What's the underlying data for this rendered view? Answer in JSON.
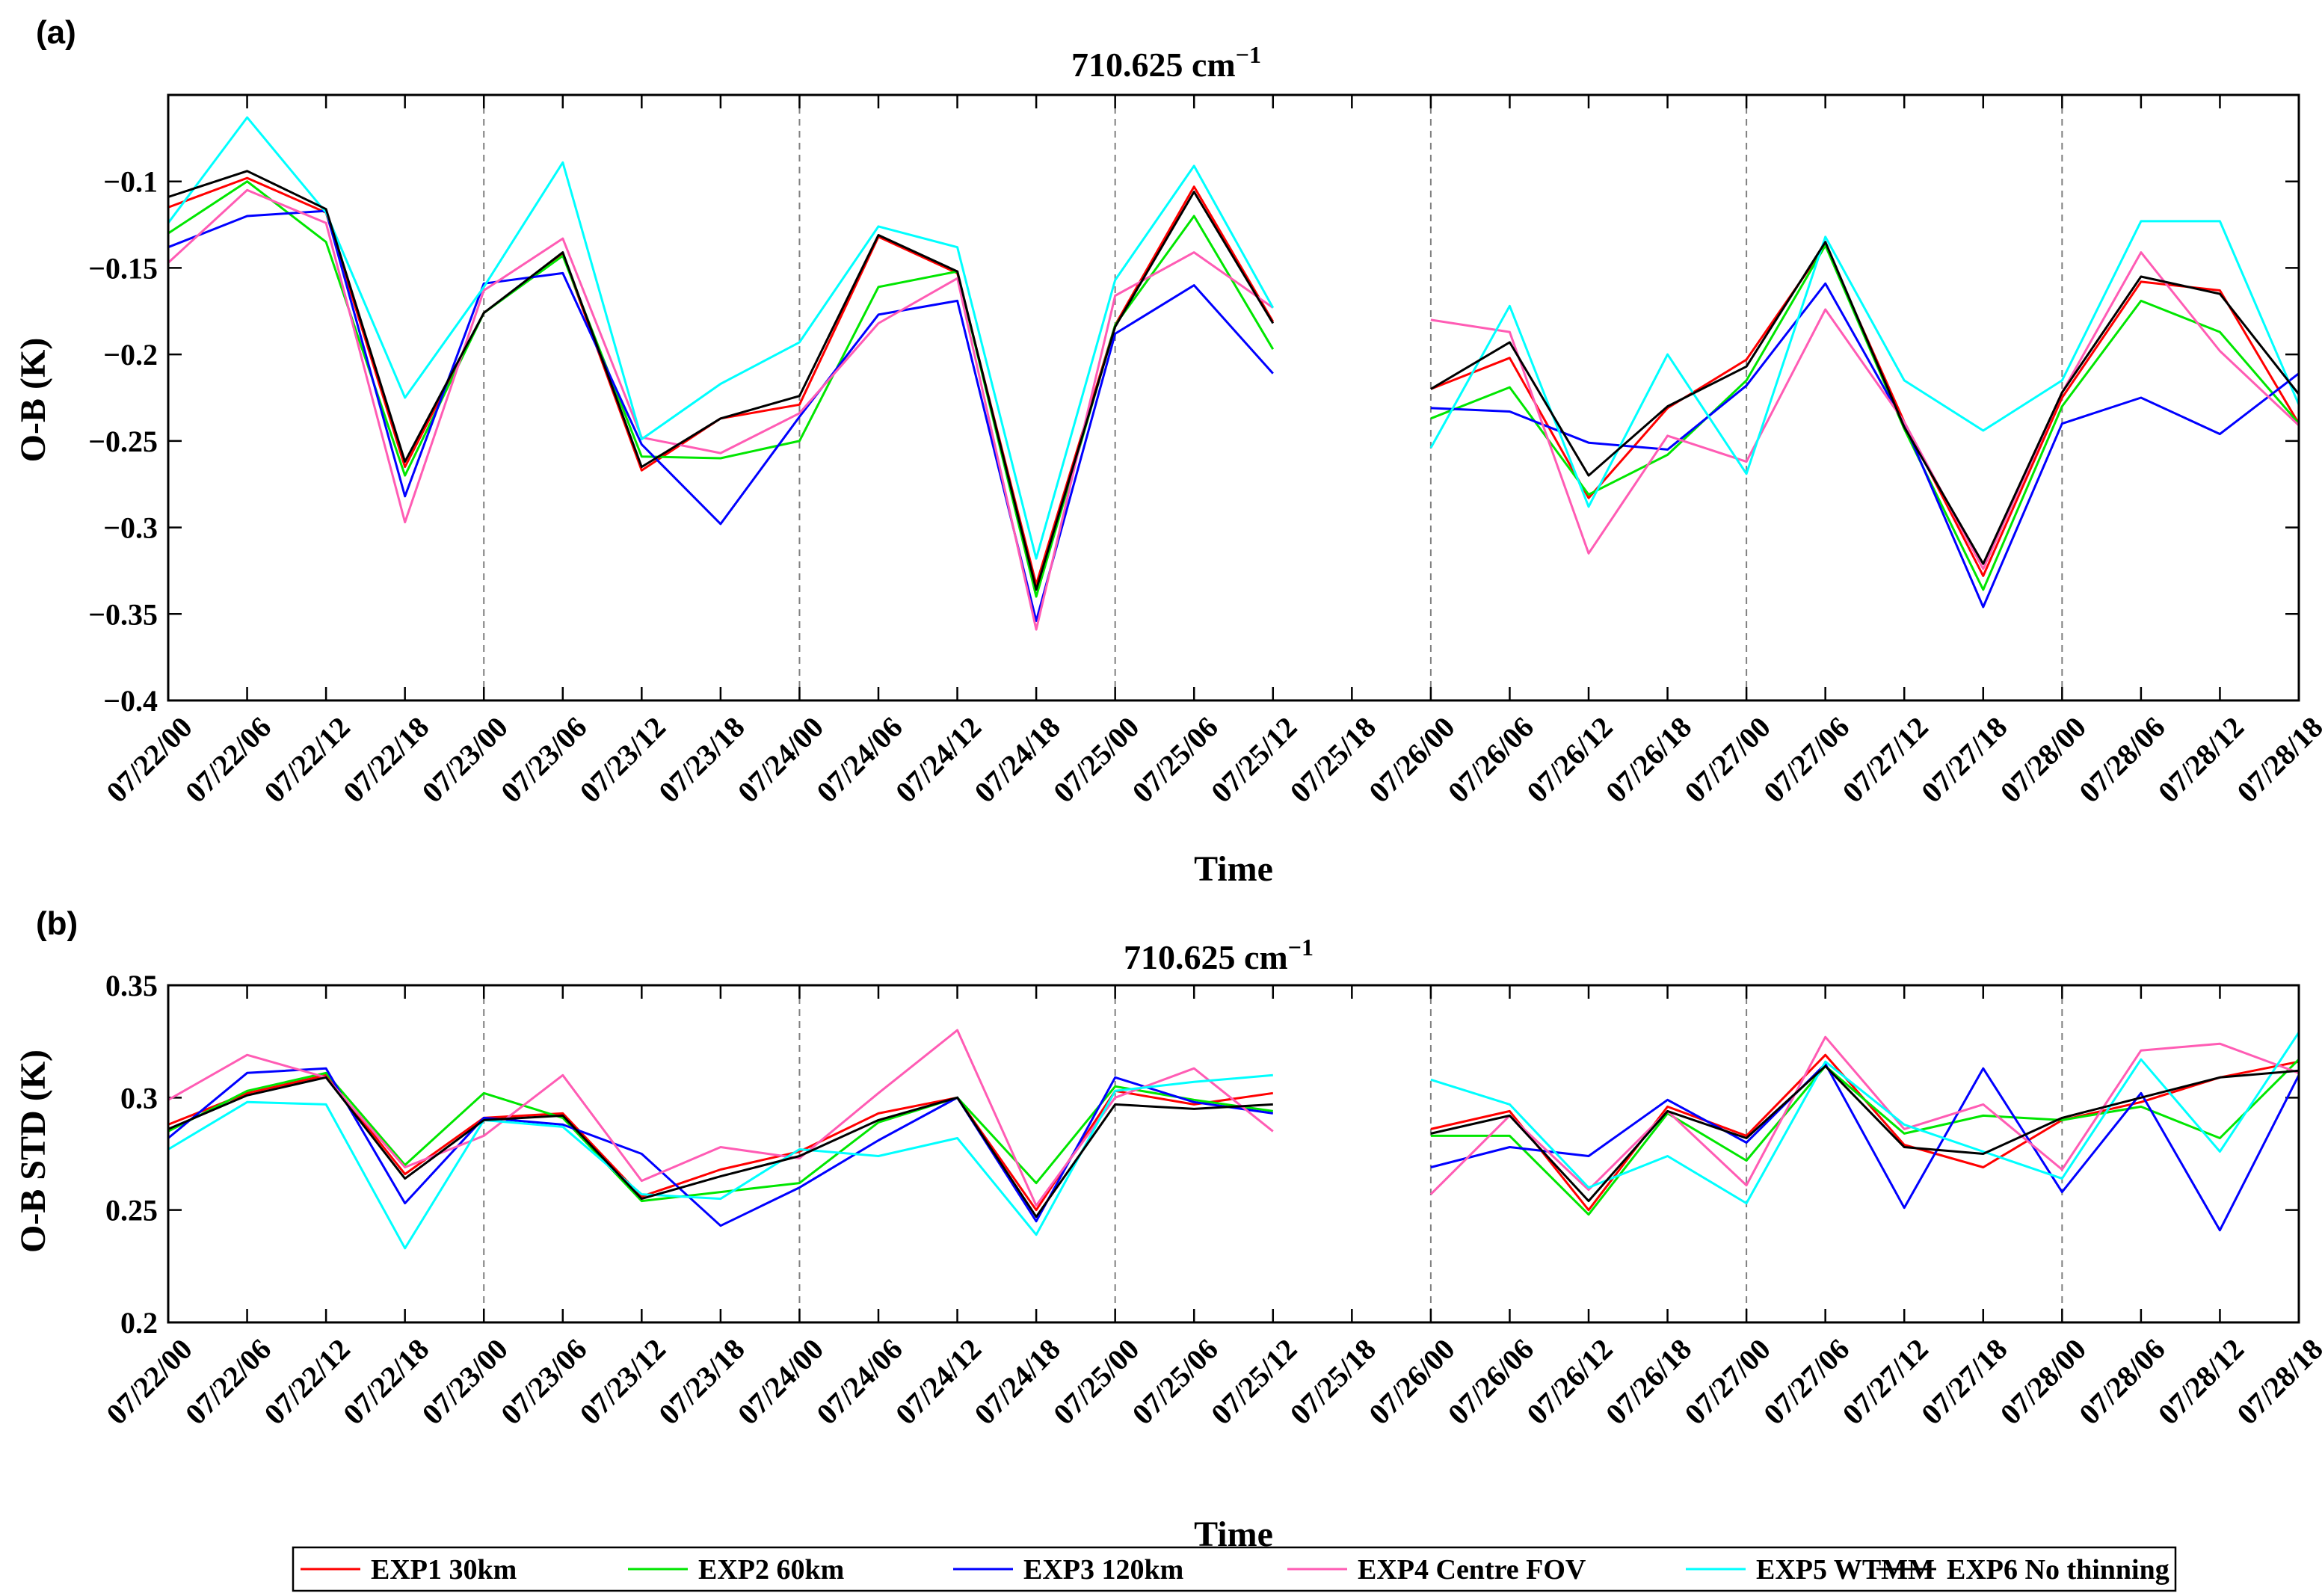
{
  "colors": {
    "EXP1": "#ff0000",
    "EXP2": "#00e600",
    "EXP3": "#0000ff",
    "EXP4": "#ff5cb4",
    "EXP5": "#00ffff",
    "EXP6": "#000000"
  },
  "legend": {
    "items": [
      "EXP1 30km",
      "EXP2 60km",
      "EXP3 120km",
      "EXP4 Centre FOV",
      "EXP5 WTMM",
      "EXP6 No thinning"
    ]
  },
  "chart_data": [
    {
      "type": "line",
      "panel_label": "(a)",
      "title_main": "710.625 cm",
      "title_sup": "−1",
      "xlabel": "Time",
      "ylabel": "O-B (K)",
      "ylim": [
        -0.4,
        -0.05
      ],
      "yticks": [
        -0.4,
        -0.35,
        -0.3,
        -0.25,
        -0.2,
        -0.15,
        -0.1
      ],
      "ytick_labels": [
        "−0.4",
        "−0.35",
        "−0.3",
        "−0.25",
        "−0.2",
        "−0.15",
        "−0.1"
      ],
      "x": [
        "07/22/00",
        "07/22/06",
        "07/22/12",
        "07/22/18",
        "07/23/00",
        "07/23/06",
        "07/23/12",
        "07/23/18",
        "07/24/00",
        "07/24/06",
        "07/24/12",
        "07/24/18",
        "07/25/00",
        "07/25/06",
        "07/25/12",
        "07/25/18",
        "07/26/00",
        "07/26/06",
        "07/26/12",
        "07/26/18",
        "07/27/00",
        "07/27/06",
        "07/27/12",
        "07/27/18",
        "07/28/00",
        "07/28/06",
        "07/28/12",
        "07/28/18"
      ],
      "day_separators": [
        "07/23/00",
        "07/24/00",
        "07/25/00",
        "07/26/00",
        "07/27/00",
        "07/28/00"
      ],
      "series": [
        {
          "name": "EXP1 30km",
          "key": "EXP1",
          "values": [
            -0.115,
            -0.098,
            -0.118,
            -0.265,
            -0.176,
            -0.142,
            -0.267,
            -0.237,
            -0.229,
            -0.132,
            -0.153,
            -0.333,
            -0.183,
            -0.103,
            -0.181,
            null,
            -0.22,
            -0.202,
            -0.283,
            -0.231,
            -0.203,
            -0.137,
            -0.239,
            -0.328,
            -0.225,
            -0.158,
            -0.163,
            -0.24
          ]
        },
        {
          "name": "EXP2 60km",
          "key": "EXP2",
          "values": [
            -0.13,
            -0.1,
            -0.135,
            -0.27,
            -0.176,
            -0.143,
            -0.259,
            -0.26,
            -0.25,
            -0.161,
            -0.152,
            -0.34,
            -0.183,
            -0.12,
            -0.197,
            null,
            -0.237,
            -0.219,
            -0.281,
            -0.258,
            -0.215,
            -0.137,
            -0.243,
            -0.336,
            -0.23,
            -0.169,
            -0.187,
            -0.24
          ]
        },
        {
          "name": "EXP3 120km",
          "key": "EXP3",
          "values": [
            -0.138,
            -0.12,
            -0.117,
            -0.282,
            -0.159,
            -0.153,
            -0.252,
            -0.298,
            -0.236,
            -0.177,
            -0.169,
            -0.354,
            -0.188,
            -0.16,
            -0.211,
            null,
            -0.231,
            -0.233,
            -0.251,
            -0.255,
            -0.218,
            -0.159,
            -0.24,
            -0.346,
            -0.24,
            -0.225,
            -0.246,
            -0.211
          ]
        },
        {
          "name": "EXP4 Centre FOV",
          "key": "EXP4",
          "values": [
            -0.147,
            -0.105,
            -0.124,
            -0.297,
            -0.163,
            -0.133,
            -0.248,
            -0.257,
            -0.234,
            -0.182,
            -0.156,
            -0.359,
            -0.166,
            -0.141,
            -0.173,
            null,
            -0.18,
            -0.187,
            -0.315,
            -0.247,
            -0.262,
            -0.174,
            -0.239,
            -0.324,
            -0.222,
            -0.141,
            -0.198,
            -0.241
          ]
        },
        {
          "name": "EXP5 WTMM",
          "key": "EXP5",
          "values": [
            -0.124,
            -0.063,
            -0.118,
            -0.225,
            -0.161,
            -0.089,
            -0.249,
            -0.217,
            -0.193,
            -0.126,
            -0.138,
            -0.318,
            -0.157,
            -0.091,
            -0.173,
            null,
            -0.254,
            -0.172,
            -0.288,
            -0.2,
            -0.269,
            -0.132,
            -0.215,
            -0.244,
            -0.215,
            -0.123,
            -0.123,
            -0.229
          ]
        },
        {
          "name": "EXP6 No thinning",
          "key": "EXP6",
          "values": [
            -0.109,
            -0.094,
            -0.116,
            -0.262,
            -0.176,
            -0.141,
            -0.265,
            -0.237,
            -0.224,
            -0.131,
            -0.152,
            -0.336,
            -0.184,
            -0.106,
            -0.182,
            null,
            -0.22,
            -0.193,
            -0.27,
            -0.23,
            -0.207,
            -0.135,
            -0.242,
            -0.321,
            -0.222,
            -0.155,
            -0.165,
            -0.223
          ]
        }
      ]
    },
    {
      "type": "line",
      "panel_label": "(b)",
      "title_main": "710.625 cm",
      "title_sup": "−1",
      "xlabel": "Time",
      "ylabel": "O-B STD (K)",
      "ylim": [
        0.2,
        0.35
      ],
      "yticks": [
        0.2,
        0.25,
        0.3,
        0.35
      ],
      "ytick_labels": [
        "0.2",
        "0.25",
        "0.3",
        "0.35"
      ],
      "x": [
        "07/22/00",
        "07/22/06",
        "07/22/12",
        "07/22/18",
        "07/23/00",
        "07/23/06",
        "07/23/12",
        "07/23/18",
        "07/24/00",
        "07/24/06",
        "07/24/12",
        "07/24/18",
        "07/25/00",
        "07/25/06",
        "07/25/12",
        "07/25/18",
        "07/26/00",
        "07/26/06",
        "07/26/12",
        "07/26/18",
        "07/27/00",
        "07/27/06",
        "07/27/12",
        "07/27/18",
        "07/28/00",
        "07/28/06",
        "07/28/12",
        "07/28/18"
      ],
      "day_separators": [
        "07/23/00",
        "07/24/00",
        "07/25/00",
        "07/26/00",
        "07/27/00",
        "07/28/00"
      ],
      "series": [
        {
          "name": "EXP1 30km",
          "key": "EXP1",
          "values": [
            0.288,
            0.302,
            0.31,
            0.266,
            0.291,
            0.293,
            0.256,
            0.268,
            0.276,
            0.293,
            0.3,
            0.25,
            0.303,
            0.297,
            0.302,
            null,
            0.286,
            0.294,
            0.25,
            0.296,
            0.283,
            0.319,
            0.279,
            0.269,
            0.29,
            0.298,
            0.309,
            0.316
          ]
        },
        {
          "name": "EXP2 60km",
          "key": "EXP2",
          "values": [
            0.285,
            0.303,
            0.311,
            0.27,
            0.302,
            0.291,
            0.254,
            0.258,
            0.262,
            0.289,
            0.3,
            0.262,
            0.305,
            0.299,
            0.294,
            null,
            0.283,
            0.283,
            0.248,
            0.293,
            0.272,
            0.314,
            0.284,
            0.292,
            0.29,
            0.296,
            0.282,
            0.317
          ]
        },
        {
          "name": "EXP3 120km",
          "key": "EXP3",
          "values": [
            0.282,
            0.311,
            0.313,
            0.253,
            0.291,
            0.288,
            0.275,
            0.243,
            0.26,
            0.281,
            0.3,
            0.245,
            0.309,
            0.298,
            0.293,
            null,
            0.269,
            0.278,
            0.274,
            0.299,
            0.28,
            0.315,
            0.251,
            0.313,
            0.258,
            0.302,
            0.241,
            0.31
          ]
        },
        {
          "name": "EXP4 Centre FOV",
          "key": "EXP4",
          "values": [
            0.299,
            0.319,
            0.309,
            0.269,
            0.283,
            0.31,
            0.263,
            0.278,
            0.273,
            0.302,
            0.33,
            0.252,
            0.3,
            0.313,
            0.285,
            null,
            0.257,
            0.292,
            0.259,
            0.294,
            0.261,
            0.327,
            0.286,
            0.297,
            0.268,
            0.321,
            0.324,
            0.311
          ]
        },
        {
          "name": "EXP5 WTMM",
          "key": "EXP5",
          "values": [
            0.277,
            0.298,
            0.297,
            0.233,
            0.29,
            0.287,
            0.257,
            0.255,
            0.277,
            0.274,
            0.282,
            0.239,
            0.303,
            0.307,
            0.31,
            null,
            0.308,
            0.297,
            0.26,
            0.274,
            0.253,
            0.316,
            0.288,
            0.276,
            0.264,
            0.317,
            0.276,
            0.329
          ]
        },
        {
          "name": "EXP6 No thinning",
          "key": "EXP6",
          "values": [
            0.286,
            0.301,
            0.309,
            0.264,
            0.29,
            0.292,
            0.255,
            0.265,
            0.274,
            0.29,
            0.3,
            0.247,
            0.297,
            0.295,
            0.297,
            null,
            0.284,
            0.292,
            0.254,
            0.294,
            0.282,
            0.314,
            0.278,
            0.275,
            0.291,
            0.3,
            0.309,
            0.312
          ]
        }
      ]
    }
  ]
}
